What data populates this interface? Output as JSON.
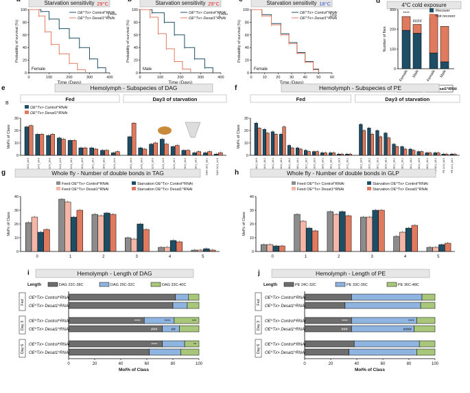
{
  "colors": {
    "control": "#1d4e66",
    "desat": "#e07a5f",
    "recover": "#1d4e66",
    "notrec": "#e07a5f",
    "feedCtrl": "#8c8c8c",
    "feedDesat": "#f4b6a6",
    "starvCtrl": "#1d4e66",
    "starvDesat": "#e07a5f",
    "len1": "#6e6e6e",
    "len2": "#8fb4e0",
    "len3": "#a8c77a",
    "title": "#e6e6e6"
  },
  "panels": {
    "a": {
      "letter": "a",
      "title": "Starvation sensitivity",
      "temp": "29°C",
      "sex": "Female",
      "sig": "****"
    },
    "b": {
      "letter": "b",
      "title": "Starvation sensitivity",
      "temp": "29°C",
      "sex": "Male",
      "sig": "****"
    },
    "c": {
      "letter": "c",
      "title": "Starvation sensitivity",
      "temp": "18°C",
      "sex": "Female",
      "sig": "ns"
    },
    "d": {
      "letter": "d",
      "title": "4°C cold exposure"
    },
    "e": {
      "letter": "e",
      "title": "Hemolymph - Subspecies of DAG",
      "fed": "Fed",
      "starv": "Day3 of starvation",
      "sub": "B"
    },
    "f": {
      "letter": "f",
      "title": "Hemolymph - Subspecies of PE",
      "fed": "Fed",
      "starv": "Day3 of starvation"
    },
    "g": {
      "letter": "g",
      "title": "Whole fly - Number of double bonds in TAG"
    },
    "h": {
      "letter": "h",
      "title": "Whole fly - Number of double bonds in GLP"
    },
    "i": {
      "letter": "i",
      "title": "Hemolymph - Length of DAG"
    },
    "j": {
      "letter": "j",
      "title": "Hemolymph - Length of PE"
    }
  },
  "legend": {
    "ctrl": "OE^Tx> Control^RNAi",
    "desat": "OE^Tx> Desat1^RNAi",
    "recover": "Recover",
    "notRecover": "Not recover",
    "feedCtrl": "Feed OE^Tx> Control^RNAi",
    "starvCtrl": "Starvation OE^Tx> Control^RNAi",
    "feedDesat": "Feed OE^Tx> Desat1^RNAi",
    "starvDesat": "Starvation OE^Tx> Desat1^RNAi",
    "length": "Length"
  },
  "chart_data": [
    {
      "id": "a",
      "type": "line",
      "title": "Starvation sensitivity",
      "xlabel": "Time (Days)",
      "ylabel": "Probability of survival (%)",
      "xlim": [
        0,
        400
      ],
      "ylim": [
        0,
        100
      ],
      "xticks": [
        "0",
        "100",
        "200",
        "300",
        "400"
      ],
      "yticks": [
        "0",
        "20",
        "40",
        "60",
        "80",
        "100"
      ],
      "series": [
        {
          "name": "OE^Tx> Control^RNAi",
          "x": [
            0,
            60,
            100,
            150,
            200,
            250,
            300,
            340,
            380
          ],
          "y": [
            100,
            97,
            85,
            70,
            55,
            40,
            22,
            8,
            0
          ]
        },
        {
          "name": "OE^Tx> Desat1^RNAi",
          "x": [
            0,
            50,
            80,
            110,
            150,
            200,
            240,
            280
          ],
          "y": [
            100,
            90,
            65,
            45,
            30,
            15,
            5,
            0
          ]
        }
      ]
    },
    {
      "id": "b",
      "type": "line",
      "title": "Starvation sensitivity",
      "xlabel": "Time (Days)",
      "ylabel": "Probability of survival (%)",
      "xlim": [
        0,
        400
      ],
      "ylim": [
        0,
        100
      ],
      "xticks": [
        "0",
        "100",
        "200",
        "300",
        "400"
      ],
      "yticks": [
        "0",
        "20",
        "40",
        "60",
        "80",
        "100"
      ],
      "series": [
        {
          "name": "OE^Tx> Control^RNAi",
          "x": [
            0,
            60,
            120,
            170,
            220,
            270,
            320,
            360
          ],
          "y": [
            100,
            95,
            80,
            60,
            40,
            22,
            8,
            0
          ]
        },
        {
          "name": "OE^Tx> Desat1^RNAi",
          "x": [
            0,
            50,
            90,
            130,
            170,
            210,
            250
          ],
          "y": [
            100,
            88,
            62,
            38,
            18,
            6,
            0
          ]
        }
      ]
    },
    {
      "id": "c",
      "type": "line",
      "title": "Starvation sensitivity",
      "xlabel": "Time (Days)",
      "ylabel": "Probability of survival (%)",
      "xlim": [
        0,
        60
      ],
      "ylim": [
        0,
        100
      ],
      "xticks": [
        "0",
        "10",
        "20",
        "30",
        "40",
        "50",
        "60"
      ],
      "yticks": [
        "0",
        "20",
        "40",
        "60",
        "80",
        "100"
      ],
      "series": [
        {
          "name": "OE^Tx> Control^RNAi",
          "x": [
            0,
            8,
            15,
            22,
            28,
            34,
            40,
            46,
            50
          ],
          "y": [
            100,
            92,
            78,
            62,
            48,
            32,
            18,
            6,
            0
          ]
        },
        {
          "name": "OE^Tx> Desat1^RNAi",
          "x": [
            0,
            8,
            15,
            22,
            28,
            34,
            40,
            46,
            50
          ],
          "y": [
            100,
            90,
            76,
            60,
            46,
            31,
            17,
            5,
            0
          ]
        }
      ]
    },
    {
      "id": "d",
      "type": "bar",
      "title": "4°C cold exposure",
      "ylabel": "Number of flies",
      "ylim": [
        0,
        300
      ],
      "yticks": [
        "0",
        "100",
        "200",
        "300"
      ],
      "categories": [
        "Female",
        "Male",
        "Female",
        "Male"
      ],
      "groups": [
        "OE^Tx> Control^RNAi",
        "OE^Tx> Desat1^RNAi"
      ],
      "series": [
        {
          "name": "Recover",
          "values": [
            195,
            180,
            80,
            35
          ]
        },
        {
          "name": "Not recover",
          "values": [
            70,
            45,
            195,
            180
          ]
        }
      ],
      "annotations": [
        "****",
        "####"
      ]
    },
    {
      "id": "e",
      "type": "bar",
      "title": "Hemolymph - Subspecies of DAG",
      "ylabel": "Mol% of Class",
      "ylim": [
        0,
        30
      ],
      "yticks": [
        "0",
        "10",
        "20",
        "30"
      ],
      "categories": [
        "DAG 15:0_16:0",
        "DAG 14:0_16:0",
        "DAG 12:0_16:0",
        "DAG 14:0_14:0",
        "DAG 14:0_16:1",
        "DAG 16:0_16:0",
        "DAG 16:1_16:1",
        "DAG 16:0_18:1",
        "DAG 12:0_14:0"
      ],
      "series": [
        {
          "name": "Fed OE^Tx> Control^RNAi",
          "values": [
            23,
            17,
            16,
            14,
            12,
            6,
            6,
            4,
            2
          ]
        },
        {
          "name": "Fed OE^Tx> Desat1^RNAi",
          "values": [
            24,
            17,
            17,
            13,
            12,
            6,
            5,
            4,
            3
          ]
        },
        {
          "name": "Starv OE^Tx> Control^RNAi",
          "values": [
            15,
            6,
            9,
            13,
            7,
            4,
            2,
            2,
            1
          ]
        },
        {
          "name": "Starv OE^Tx> Desat1^RNAi",
          "values": [
            26,
            5,
            10,
            9,
            8,
            4,
            3,
            3,
            2
          ]
        }
      ]
    },
    {
      "id": "f",
      "type": "bar",
      "title": "Hemolymph - Subspecies of PE",
      "ylabel": "Mol% of Class",
      "ylim": [
        0,
        30
      ],
      "yticks": [
        "0",
        "10",
        "20",
        "30"
      ],
      "categories": [
        "PE 18:2_16:0",
        "PE 16:0_18:2",
        "PE 16:1_16:1",
        "PE 16:0_18:1",
        "PE 18:2_18:2",
        "PE 18:1_16:1",
        "PE 18:1_18:2",
        "PE 16:0_16:0",
        "PE 18:0_16:1",
        "PE 18:1_18:1",
        "PE 14:0_16:0",
        "PE 14:1_16:1"
      ],
      "series": [
        {
          "name": "Fed OE^Tx> Control^RNAi",
          "values": [
            26,
            21,
            19,
            17,
            8,
            6,
            4,
            3,
            2,
            2,
            1,
            1
          ]
        },
        {
          "name": "Fed OE^Tx> Desat1^RNAi",
          "values": [
            22,
            18,
            17,
            23,
            6,
            5,
            3,
            3,
            2,
            2,
            1,
            1
          ]
        },
        {
          "name": "Starv OE^Tx> Control^RNAi",
          "values": [
            25,
            22,
            20,
            18,
            9,
            7,
            5,
            3,
            2,
            2,
            1,
            1
          ]
        },
        {
          "name": "Starv OE^Tx> Desat1^RNAi",
          "values": [
            20,
            17,
            15,
            14,
            7,
            5,
            4,
            3,
            2,
            2,
            1,
            1
          ]
        }
      ]
    },
    {
      "id": "g",
      "type": "bar",
      "title": "Whole fly - Number of double bonds in TAG",
      "ylabel": "Mol% of Class",
      "ylim": [
        0,
        40
      ],
      "yticks": [
        "0",
        "10",
        "20",
        "30",
        "40"
      ],
      "categories": [
        "0",
        "1",
        "2",
        "3",
        "4",
        "5"
      ],
      "series": [
        {
          "name": "Feed OE^Tx> Control^RNAi",
          "values": [
            21,
            38,
            27,
            10,
            3,
            1
          ]
        },
        {
          "name": "Feed OE^Tx> Desat1^RNAi",
          "values": [
            25,
            36,
            26,
            9,
            3,
            1
          ]
        },
        {
          "name": "Starvation OE^Tx> Control^RNAi",
          "values": [
            14,
            25,
            28,
            20,
            8,
            2
          ]
        },
        {
          "name": "Starvation OE^Tx> Desat1^RNAi",
          "values": [
            16,
            30,
            27,
            16,
            7,
            1
          ]
        }
      ]
    },
    {
      "id": "h",
      "type": "bar",
      "title": "Whole fly - Number of double bonds in GLP",
      "ylabel": "Mol% of Class",
      "ylim": [
        0,
        40
      ],
      "yticks": [
        "0",
        "10",
        "20",
        "30",
        "40"
      ],
      "categories": [
        "0",
        "1",
        "2",
        "3",
        "4",
        "5"
      ],
      "series": [
        {
          "name": "Feed OE^Tx> Control^RNAi",
          "values": [
            5,
            27,
            29,
            25,
            11,
            3
          ]
        },
        {
          "name": "Feed OE^Tx> Desat1^RNAi",
          "values": [
            5,
            22,
            27,
            25,
            14,
            3
          ]
        },
        {
          "name": "Starvation OE^Tx> Control^RNAi",
          "values": [
            4,
            17,
            29,
            30,
            17,
            5
          ]
        },
        {
          "name": "Starvation OE^Tx> Desat1^RNAi",
          "values": [
            4,
            15,
            26,
            30,
            19,
            6
          ]
        }
      ]
    },
    {
      "id": "i",
      "type": "bar",
      "stacked": true,
      "horizontal": true,
      "title": "Hemolymph - Length of DAG",
      "xlabel": "Mol% of Class",
      "xlim": [
        0,
        100
      ],
      "xticks": [
        "0",
        "20",
        "40",
        "60",
        "80",
        "100"
      ],
      "groups": [
        "Fed",
        "Day 3",
        "Day 6"
      ],
      "categories": [
        "Fed OE^Tx> Control^RNAi",
        "Fed OE^Tx> Desat1^RNAi",
        "Day 3 OE^Tx> Control^RNAi",
        "Day 3 OE^Tx> Desat1^RNAi",
        "Day 6 OE^Tx> Control^RNAi",
        "Day 6 OE^Tx> Desat1^RNAi"
      ],
      "series": [
        {
          "name": "DAG 22C-28C",
          "values": [
            82,
            80,
            58,
            72,
            72,
            62
          ]
        },
        {
          "name": "DAG 29C-32C",
          "values": [
            10,
            11,
            23,
            13,
            17,
            24
          ]
        },
        {
          "name": "DAG 33C-40C",
          "values": [
            8,
            9,
            19,
            15,
            11,
            14
          ]
        }
      ],
      "annotations": [
        "****",
        "****",
        "***",
        "###",
        "##",
        "****",
        "**"
      ]
    },
    {
      "id": "j",
      "type": "bar",
      "stacked": true,
      "horizontal": true,
      "title": "Hemolymph - Length of PE",
      "xlabel": "Mol% of Class",
      "xlim": [
        0,
        100
      ],
      "xticks": [
        "0",
        "20",
        "40",
        "60",
        "80",
        "100"
      ],
      "groups": [
        "Fed",
        "Day 3",
        "Day 6"
      ],
      "categories": [
        "Fed OE^Tx> Control^RNAi",
        "Fed OE^Tx> Desat1^RNAi",
        "Day 3 OE^Tx> Control^RNAi",
        "Day 3 OE^Tx> Desat1^RNAi",
        "Day 6 OE^Tx> Control^RNAi",
        "Day 6 OE^Tx> Desat1^RNAi"
      ],
      "series": [
        {
          "name": "PE 24C-32C",
          "values": [
            36,
            31,
            36,
            36,
            38,
            34
          ]
        },
        {
          "name": "PE 33C-35C",
          "values": [
            54,
            58,
            50,
            48,
            50,
            52
          ]
        },
        {
          "name": "PE 36C-48C",
          "values": [
            10,
            11,
            14,
            16,
            12,
            14
          ]
        }
      ],
      "annotations": [
        "****",
        "****",
        "###",
        "####"
      ]
    }
  ]
}
